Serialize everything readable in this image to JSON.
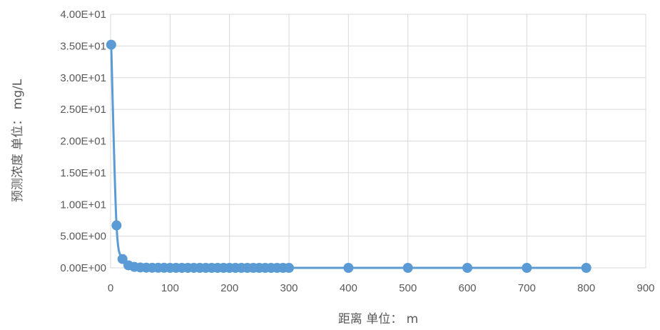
{
  "chart_data": {
    "type": "scatter",
    "title": "",
    "xlabel": "距离 单位： m",
    "ylabel": "预测浓度 单位： mg/L",
    "xlim": [
      0,
      900
    ],
    "ylim": [
      0,
      40
    ],
    "x_ticks": [
      "0",
      "100",
      "200",
      "300",
      "400",
      "500",
      "600",
      "700",
      "800",
      "900"
    ],
    "y_ticks": [
      "0.00E+00",
      "5.00E+00",
      "1.00E+01",
      "1.50E+01",
      "2.00E+01",
      "2.50E+01",
      "3.00E+01",
      "3.50E+01",
      "4.00E+01"
    ],
    "grid": true,
    "legend": "none",
    "series": [
      {
        "color": "#5b9bd5",
        "smoothed_line": true,
        "x": [
          1,
          10,
          20,
          30,
          40,
          50,
          60,
          70,
          80,
          90,
          100,
          110,
          120,
          130,
          140,
          150,
          160,
          170,
          180,
          190,
          200,
          210,
          220,
          230,
          240,
          250,
          260,
          270,
          280,
          290,
          300,
          400,
          500,
          600,
          700,
          800
        ],
        "y": [
          35.2,
          6.7,
          1.4,
          0.4,
          0.15,
          0.06,
          0.03,
          0.02,
          0.01,
          0.01,
          0.005,
          0.004,
          0.003,
          0.002,
          0.002,
          0.001,
          0.001,
          0.001,
          0.001,
          0.001,
          0,
          0,
          0,
          0,
          0,
          0,
          0,
          0,
          0,
          0,
          0,
          0,
          0,
          0,
          0,
          0
        ]
      }
    ]
  }
}
